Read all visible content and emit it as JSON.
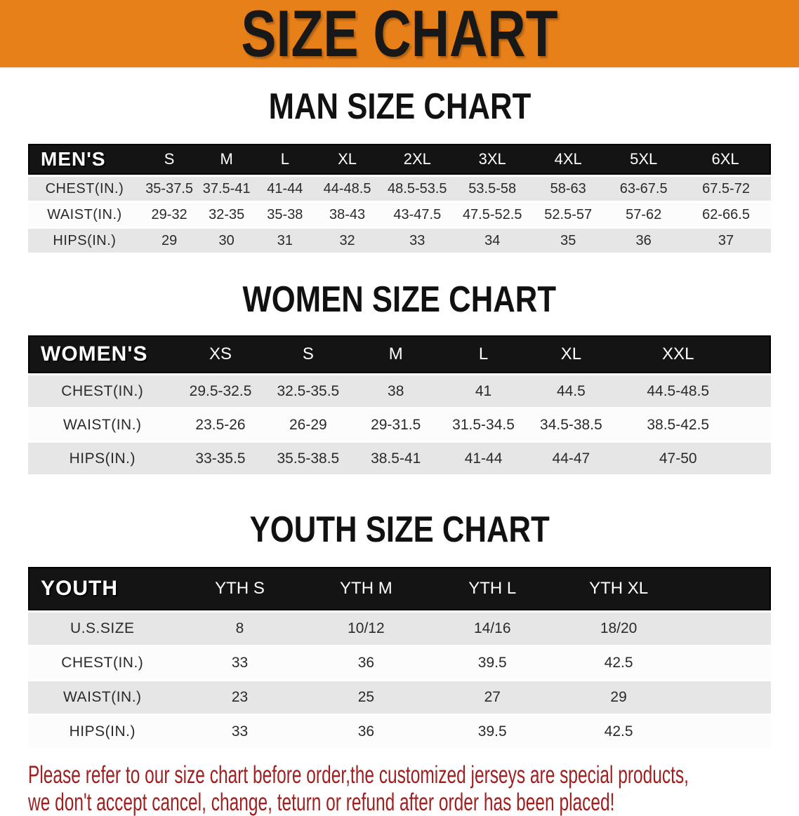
{
  "banner": {
    "title": "SIZE CHART",
    "bg_color": "#E8801A",
    "text_color": "#181818"
  },
  "sections": [
    {
      "heading": "MAN SIZE CHART",
      "corner_label": "MEN'S",
      "columns": [
        "S",
        "M",
        "L",
        "XL",
        "2XL",
        "3XL",
        "4XL",
        "5XL",
        "6XL"
      ],
      "rows": [
        {
          "label": "CHEST(IN.)",
          "values": [
            "35-37.5",
            "37.5-41",
            "41-44",
            "44-48.5",
            "48.5-53.5",
            "53.5-58",
            "58-63",
            "63-67.5",
            "67.5-72"
          ]
        },
        {
          "label": "WAIST(IN.)",
          "values": [
            "29-32",
            "32-35",
            "35-38",
            "38-43",
            "43-47.5",
            "47.5-52.5",
            "52.5-57",
            "57-62",
            "62-66.5"
          ]
        },
        {
          "label": "HIPS(IN.)",
          "values": [
            "29",
            "30",
            "31",
            "32",
            "33",
            "34",
            "35",
            "36",
            "37"
          ]
        }
      ]
    },
    {
      "heading": "WOMEN SIZE CHART",
      "corner_label": "WOMEN'S",
      "columns": [
        "XS",
        "S",
        "M",
        "L",
        "XL",
        "XXL"
      ],
      "rows": [
        {
          "label": "CHEST(IN.)",
          "values": [
            "29.5-32.5",
            "32.5-35.5",
            "38",
            "41",
            "44.5",
            "44.5-48.5"
          ]
        },
        {
          "label": "WAIST(IN.)",
          "values": [
            "23.5-26",
            "26-29",
            "29-31.5",
            "31.5-34.5",
            "34.5-38.5",
            "38.5-42.5"
          ]
        },
        {
          "label": "HIPS(IN.)",
          "values": [
            "33-35.5",
            "35.5-38.5",
            "38.5-41",
            "41-44",
            "44-47",
            "47-50"
          ]
        }
      ]
    },
    {
      "heading": "YOUTH SIZE CHART",
      "corner_label": "YOUTH",
      "columns": [
        "YTH S",
        "YTH M",
        "YTH L",
        "YTH XL"
      ],
      "rows": [
        {
          "label": "U.S.SIZE",
          "values": [
            "8",
            "10/12",
            "14/16",
            "18/20"
          ]
        },
        {
          "label": "CHEST(IN.)",
          "values": [
            "33",
            "36",
            "39.5",
            "42.5"
          ]
        },
        {
          "label": "WAIST(IN.)",
          "values": [
            "23",
            "25",
            "27",
            "29"
          ]
        },
        {
          "label": "HIPS(IN.)",
          "values": [
            "33",
            "36",
            "39.5",
            "42.5"
          ]
        }
      ]
    }
  ],
  "disclaimer": {
    "line1": "Please refer to our size chart before order,the customized jerseys are special products,",
    "line2": "we don't accept cancel, change, teturn or refund after order has been placed!",
    "color": "#A02020"
  },
  "colors": {
    "header_row_bg": "#141414",
    "stripe_gray": "#e6e6e6",
    "stripe_white": "#fcfcfc"
  }
}
